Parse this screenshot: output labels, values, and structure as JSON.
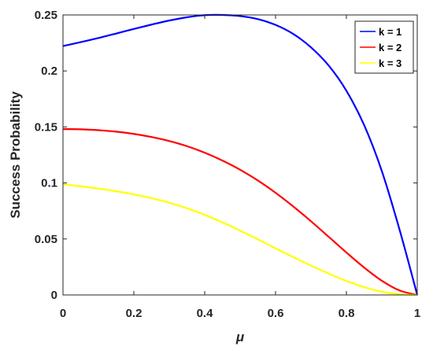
{
  "chart_data": {
    "type": "line",
    "xlabel": "μ",
    "ylabel": "Success Probability",
    "xlim": [
      0,
      1
    ],
    "ylim": [
      0,
      0.25
    ],
    "xticks": [
      0,
      0.2,
      0.4,
      0.6,
      0.8,
      1
    ],
    "xtick_labels": [
      "0",
      "0.2",
      "0.4",
      "0.6",
      "0.8",
      "1"
    ],
    "yticks": [
      0,
      0.05,
      0.1,
      0.15,
      0.2,
      0.25
    ],
    "ytick_labels": [
      "0",
      "0.05",
      "0.1",
      "0.15",
      "0.2",
      "0.25"
    ],
    "grid": false,
    "legend_position": "top-right",
    "x": [
      0,
      0.05,
      0.1,
      0.15,
      0.2,
      0.25,
      0.3,
      0.35,
      0.4,
      0.45,
      0.5,
      0.55,
      0.6,
      0.65,
      0.7,
      0.75,
      0.8,
      0.85,
      0.9,
      0.95,
      1
    ],
    "series": [
      {
        "name": "k = 1",
        "color": "#0000ff",
        "values": [
          0.2222,
          0.2257,
          0.2294,
          0.2334,
          0.2375,
          0.2414,
          0.245,
          0.2479,
          0.2498,
          0.25,
          0.249,
          0.2463,
          0.2411,
          0.233,
          0.2211,
          0.2048,
          0.1823,
          0.1517,
          0.1106,
          0.0583,
          0.0
        ]
      },
      {
        "name": "k = 2",
        "color": "#ff0000",
        "values": [
          0.1481,
          0.1479,
          0.1471,
          0.1458,
          0.1438,
          0.141,
          0.1374,
          0.1328,
          0.127,
          0.12,
          0.1118,
          0.1022,
          0.0912,
          0.079,
          0.0658,
          0.0519,
          0.0379,
          0.0245,
          0.0127,
          0.004,
          0.0
        ]
      },
      {
        "name": "k = 3",
        "color": "#ffff00",
        "values": [
          0.0988,
          0.097,
          0.095,
          0.0926,
          0.0898,
          0.0864,
          0.0823,
          0.0774,
          0.0715,
          0.0648,
          0.0575,
          0.0497,
          0.0417,
          0.0338,
          0.0262,
          0.0191,
          0.0125,
          0.007,
          0.0029,
          0.0007,
          0.0
        ]
      }
    ]
  }
}
